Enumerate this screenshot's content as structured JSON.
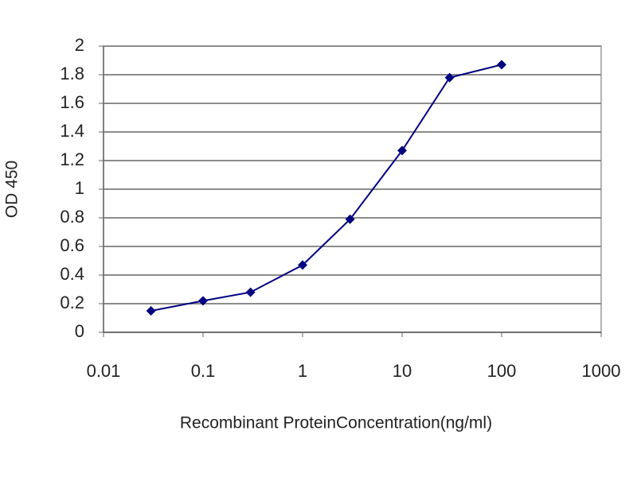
{
  "chart_data": {
    "type": "line",
    "x": [
      0.03,
      0.1,
      0.3,
      1,
      3,
      10,
      30,
      100
    ],
    "values": [
      0.15,
      0.22,
      0.28,
      0.47,
      0.79,
      1.27,
      1.78,
      1.87
    ],
    "color": "#000080",
    "x_label": "Recombinant ProteinConcentration(ng/ml)",
    "y_label": "OD 450",
    "xscale": "log",
    "xlim": [
      0.01,
      1000
    ],
    "xticks": [
      0.01,
      0.1,
      1,
      10,
      100,
      1000
    ],
    "ylim": [
      0,
      2
    ],
    "yticks": [
      0,
      0.2,
      0.4,
      0.6,
      0.8,
      1,
      1.2,
      1.4,
      1.6,
      1.8,
      2
    ],
    "grid": true
  }
}
